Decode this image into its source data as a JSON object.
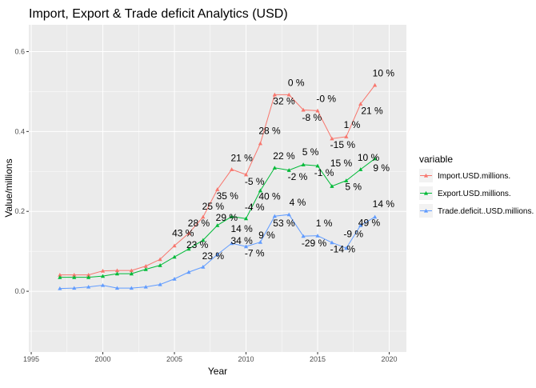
{
  "chart_data": {
    "type": "line",
    "title": "Import, Export & Trade deficit Analytics (USD)",
    "xlabel": "Year",
    "ylabel": "Value/millions",
    "xlim": [
      1994.83,
      2021.2
    ],
    "ylim": [
      -0.152,
      0.667
    ],
    "x_ticks": [
      1995,
      2000,
      2005,
      2010,
      2015,
      2020
    ],
    "y_ticks": [
      0.0,
      0.2,
      0.4,
      0.6
    ],
    "y_tick_labels": [
      "0.0",
      "0.2",
      "0.4",
      "0.6"
    ],
    "grid": true,
    "legend": {
      "title": "variable",
      "position": "right"
    },
    "x": [
      1997,
      1998,
      1999,
      2000,
      2001,
      2002,
      2003,
      2004,
      2005,
      2006,
      2007,
      2008,
      2009,
      2010,
      2011,
      2012,
      2013,
      2014,
      2015,
      2016,
      2017,
      2018,
      2019
    ],
    "series": [
      {
        "name": "Import.USD.millions.",
        "color": "#F8766D",
        "values": [
          0.041,
          0.041,
          0.041,
          0.051,
          0.052,
          0.052,
          0.063,
          0.08,
          0.114,
          0.145,
          0.186,
          0.255,
          0.305,
          0.292,
          0.37,
          0.492,
          0.492,
          0.454,
          0.452,
          0.382,
          0.387,
          0.469,
          0.516
        ]
      },
      {
        "name": "Export.USD.millions.",
        "color": "#00BA38",
        "values": [
          0.035,
          0.035,
          0.035,
          0.038,
          0.044,
          0.044,
          0.055,
          0.065,
          0.086,
          0.106,
          0.128,
          0.165,
          0.187,
          0.182,
          0.252,
          0.309,
          0.303,
          0.317,
          0.314,
          0.263,
          0.277,
          0.305,
          0.332
        ]
      },
      {
        "name": "Trade.deficit..USD.millions.",
        "color": "#619CFF",
        "values": [
          0.007,
          0.008,
          0.011,
          0.015,
          0.008,
          0.008,
          0.011,
          0.017,
          0.031,
          0.048,
          0.061,
          0.092,
          0.12,
          0.112,
          0.123,
          0.188,
          0.192,
          0.138,
          0.139,
          0.122,
          0.108,
          0.165,
          0.186
        ]
      }
    ],
    "annotations": [
      {
        "text": "10 %",
        "x": 2019.6,
        "y": 0.546
      },
      {
        "text": "0 %",
        "x": 2013.5,
        "y": 0.522
      },
      {
        "text": "32 %",
        "x": 2012.65,
        "y": 0.476
      },
      {
        "text": "-0 %",
        "x": 2015.6,
        "y": 0.482
      },
      {
        "text": "-8 %",
        "x": 2014.6,
        "y": 0.435
      },
      {
        "text": "1 %",
        "x": 2017.4,
        "y": 0.417
      },
      {
        "text": "21 %",
        "x": 2018.8,
        "y": 0.452
      },
      {
        "text": "-15 %",
        "x": 2016.75,
        "y": 0.367
      },
      {
        "text": "28 %",
        "x": 2011.65,
        "y": 0.402
      },
      {
        "text": "21 %",
        "x": 2009.7,
        "y": 0.334
      },
      {
        "text": "-5 %",
        "x": 2010.6,
        "y": 0.275
      },
      {
        "text": "35 %",
        "x": 2008.7,
        "y": 0.238
      },
      {
        "text": "25 %",
        "x": 2007.7,
        "y": 0.218
      },
      {
        "text": "43 %",
        "x": 2005.6,
        "y": 0.145
      },
      {
        "text": "22 %",
        "x": 2012.65,
        "y": 0.339
      },
      {
        "text": "5 %",
        "x": 2014.5,
        "y": 0.349
      },
      {
        "text": "-2 %",
        "x": 2013.6,
        "y": 0.287
      },
      {
        "text": "-1 %",
        "x": 2015.45,
        "y": 0.297
      },
      {
        "text": "15 %",
        "x": 2016.65,
        "y": 0.297
      },
      {
        "text": "5 %",
        "x": 2017.5,
        "y": 0.262
      },
      {
        "text": "10 %",
        "x": 2018.55,
        "y": 0.335
      },
      {
        "text": "9 %",
        "x": 2019.45,
        "y": 0.315
      },
      {
        "text": "40 %",
        "x": 2011.65,
        "y": 0.237
      },
      {
        "text": "-4 %",
        "x": 2010.6,
        "y": 0.21
      },
      {
        "text": "29 %",
        "x": 2008.65,
        "y": 0.196
      },
      {
        "text": "14 %",
        "x": 2009.7,
        "y": 0.168
      },
      {
        "text": "23 %",
        "x": 2006.6,
        "y": 0.134
      },
      {
        "text": "28 %",
        "x": 2006.7,
        "y": 0.134
      },
      {
        "text": "4 %",
        "x": 2013.6,
        "y": 0.222
      },
      {
        "text": "14 %",
        "x": 2019.6,
        "y": 0.218
      },
      {
        "text": "53 %",
        "x": 2012.65,
        "y": 0.17
      },
      {
        "text": "9 %",
        "x": 2011.45,
        "y": 0.152
      },
      {
        "text": "1 %",
        "x": 2015.45,
        "y": 0.17
      },
      {
        "text": "34 %",
        "x": 2009.7,
        "y": 0.15
      },
      {
        "text": "-29 %",
        "x": 2014.75,
        "y": 0.12
      },
      {
        "text": "-9 %",
        "x": 2017.5,
        "y": 0.143
      },
      {
        "text": "49 %",
        "x": 2018.6,
        "y": 0.147
      },
      {
        "text": "-14 %",
        "x": 2016.75,
        "y": 0.105
      },
      {
        "text": "23 %",
        "x": 2007.7,
        "y": 0.112
      },
      {
        "text": "-7 %",
        "x": 2010.6,
        "y": 0.095
      }
    ]
  }
}
